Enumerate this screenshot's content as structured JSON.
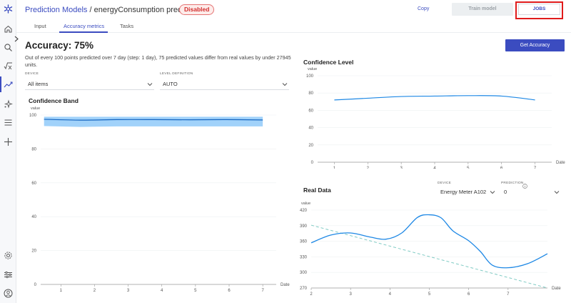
{
  "header": {
    "breadcrumb_link": "Prediction Models",
    "breadcrumb_sep": " / ",
    "breadcrumb_current": "energyConsumption prediction",
    "status_badge": "Disabled",
    "copy_label": "Copy",
    "train_label": "Train model",
    "jobs_label": "JOBS"
  },
  "tabs": [
    {
      "label": "Input"
    },
    {
      "label": "Accuracy metrics"
    },
    {
      "label": "Tasks"
    }
  ],
  "accuracy": {
    "title": "Accuracy: 75%",
    "description": "Out of every 100 points predicted over 7 day (step: 1 day), 75 predicted values differ from real values by under 27945 units.",
    "button": "Get Accuracy"
  },
  "filters": {
    "device_label": "DEVICE",
    "device_value": "All items",
    "level_label": "LEVEL DEFINITION",
    "level_value": "AUTO"
  },
  "real_data_filters": {
    "device_label": "DEVICE",
    "device_value": "Energy Meter A102",
    "prediction_label": "PREDICTION",
    "prediction_value": "0"
  },
  "colors": {
    "accent": "#3b4cc0",
    "line": "#1e88e5",
    "band": "#90caf9",
    "dashed": "#80cbc4",
    "alert": "#d32f2f"
  },
  "icons": [
    "logo-icon",
    "home-icon",
    "search-icon",
    "function-icon",
    "trend-icon",
    "sparkle-icon",
    "menu-icon",
    "plus-icon",
    "settings-icon",
    "sliders-icon",
    "user-icon",
    "chevron-right-icon",
    "close-icon",
    "chevron-down-icon",
    "info-icon"
  ],
  "chart_data": [
    {
      "id": "confidence_band",
      "type": "area",
      "title": "Confidence Band",
      "ylabel": "value",
      "xlabel": "Date",
      "x": [
        1,
        2,
        3,
        4,
        5,
        6,
        7
      ],
      "ylim": [
        0,
        100
      ],
      "yticks": [
        0,
        20,
        40,
        60,
        80,
        100
      ],
      "series": [
        {
          "role": "upper",
          "values": [
            99,
            99,
            99,
            99,
            99,
            99,
            99
          ]
        },
        {
          "role": "center",
          "values": [
            97.5,
            97,
            97.3,
            97.3,
            97.2,
            97.3,
            97.1
          ]
        },
        {
          "role": "lower",
          "values": [
            93.5,
            93,
            93.3,
            93.3,
            93.3,
            93.3,
            93.3
          ]
        }
      ]
    },
    {
      "id": "confidence_level",
      "type": "line",
      "title": "Confidence Level",
      "ylabel": "value",
      "xlabel": "Date",
      "x": [
        1,
        2,
        3,
        4,
        5,
        6,
        7
      ],
      "ylim": [
        0,
        100
      ],
      "yticks": [
        0,
        20,
        40,
        60,
        80,
        100
      ],
      "series": [
        {
          "values": [
            72,
            74,
            76,
            76.5,
            77,
            76.5,
            72
          ]
        }
      ]
    },
    {
      "id": "real_data",
      "type": "line",
      "title": "Real Data",
      "ylabel": "value",
      "xlabel": "Date",
      "x": [
        2,
        3,
        4,
        5,
        6,
        7,
        8
      ],
      "xlim": [
        2,
        8
      ],
      "ylim": [
        270,
        420
      ],
      "yticks": [
        270,
        300,
        330,
        360,
        390,
        420
      ],
      "series": [
        {
          "role": "real",
          "points": [
            [
              2,
              357
            ],
            [
              2.5,
              372
            ],
            [
              3,
              376
            ],
            [
              3.5,
              368
            ],
            [
              3.9,
              364
            ],
            [
              4.3,
              376
            ],
            [
              4.7,
              406
            ],
            [
              5,
              411
            ],
            [
              5.3,
              405
            ],
            [
              5.6,
              380
            ],
            [
              6,
              361
            ],
            [
              6.3,
              340
            ],
            [
              6.6,
              314
            ],
            [
              7,
              309
            ],
            [
              7.5,
              317
            ],
            [
              8,
              336
            ]
          ]
        },
        {
          "role": "trend",
          "points": [
            [
              2,
              391
            ],
            [
              8,
              270
            ]
          ]
        }
      ]
    }
  ]
}
